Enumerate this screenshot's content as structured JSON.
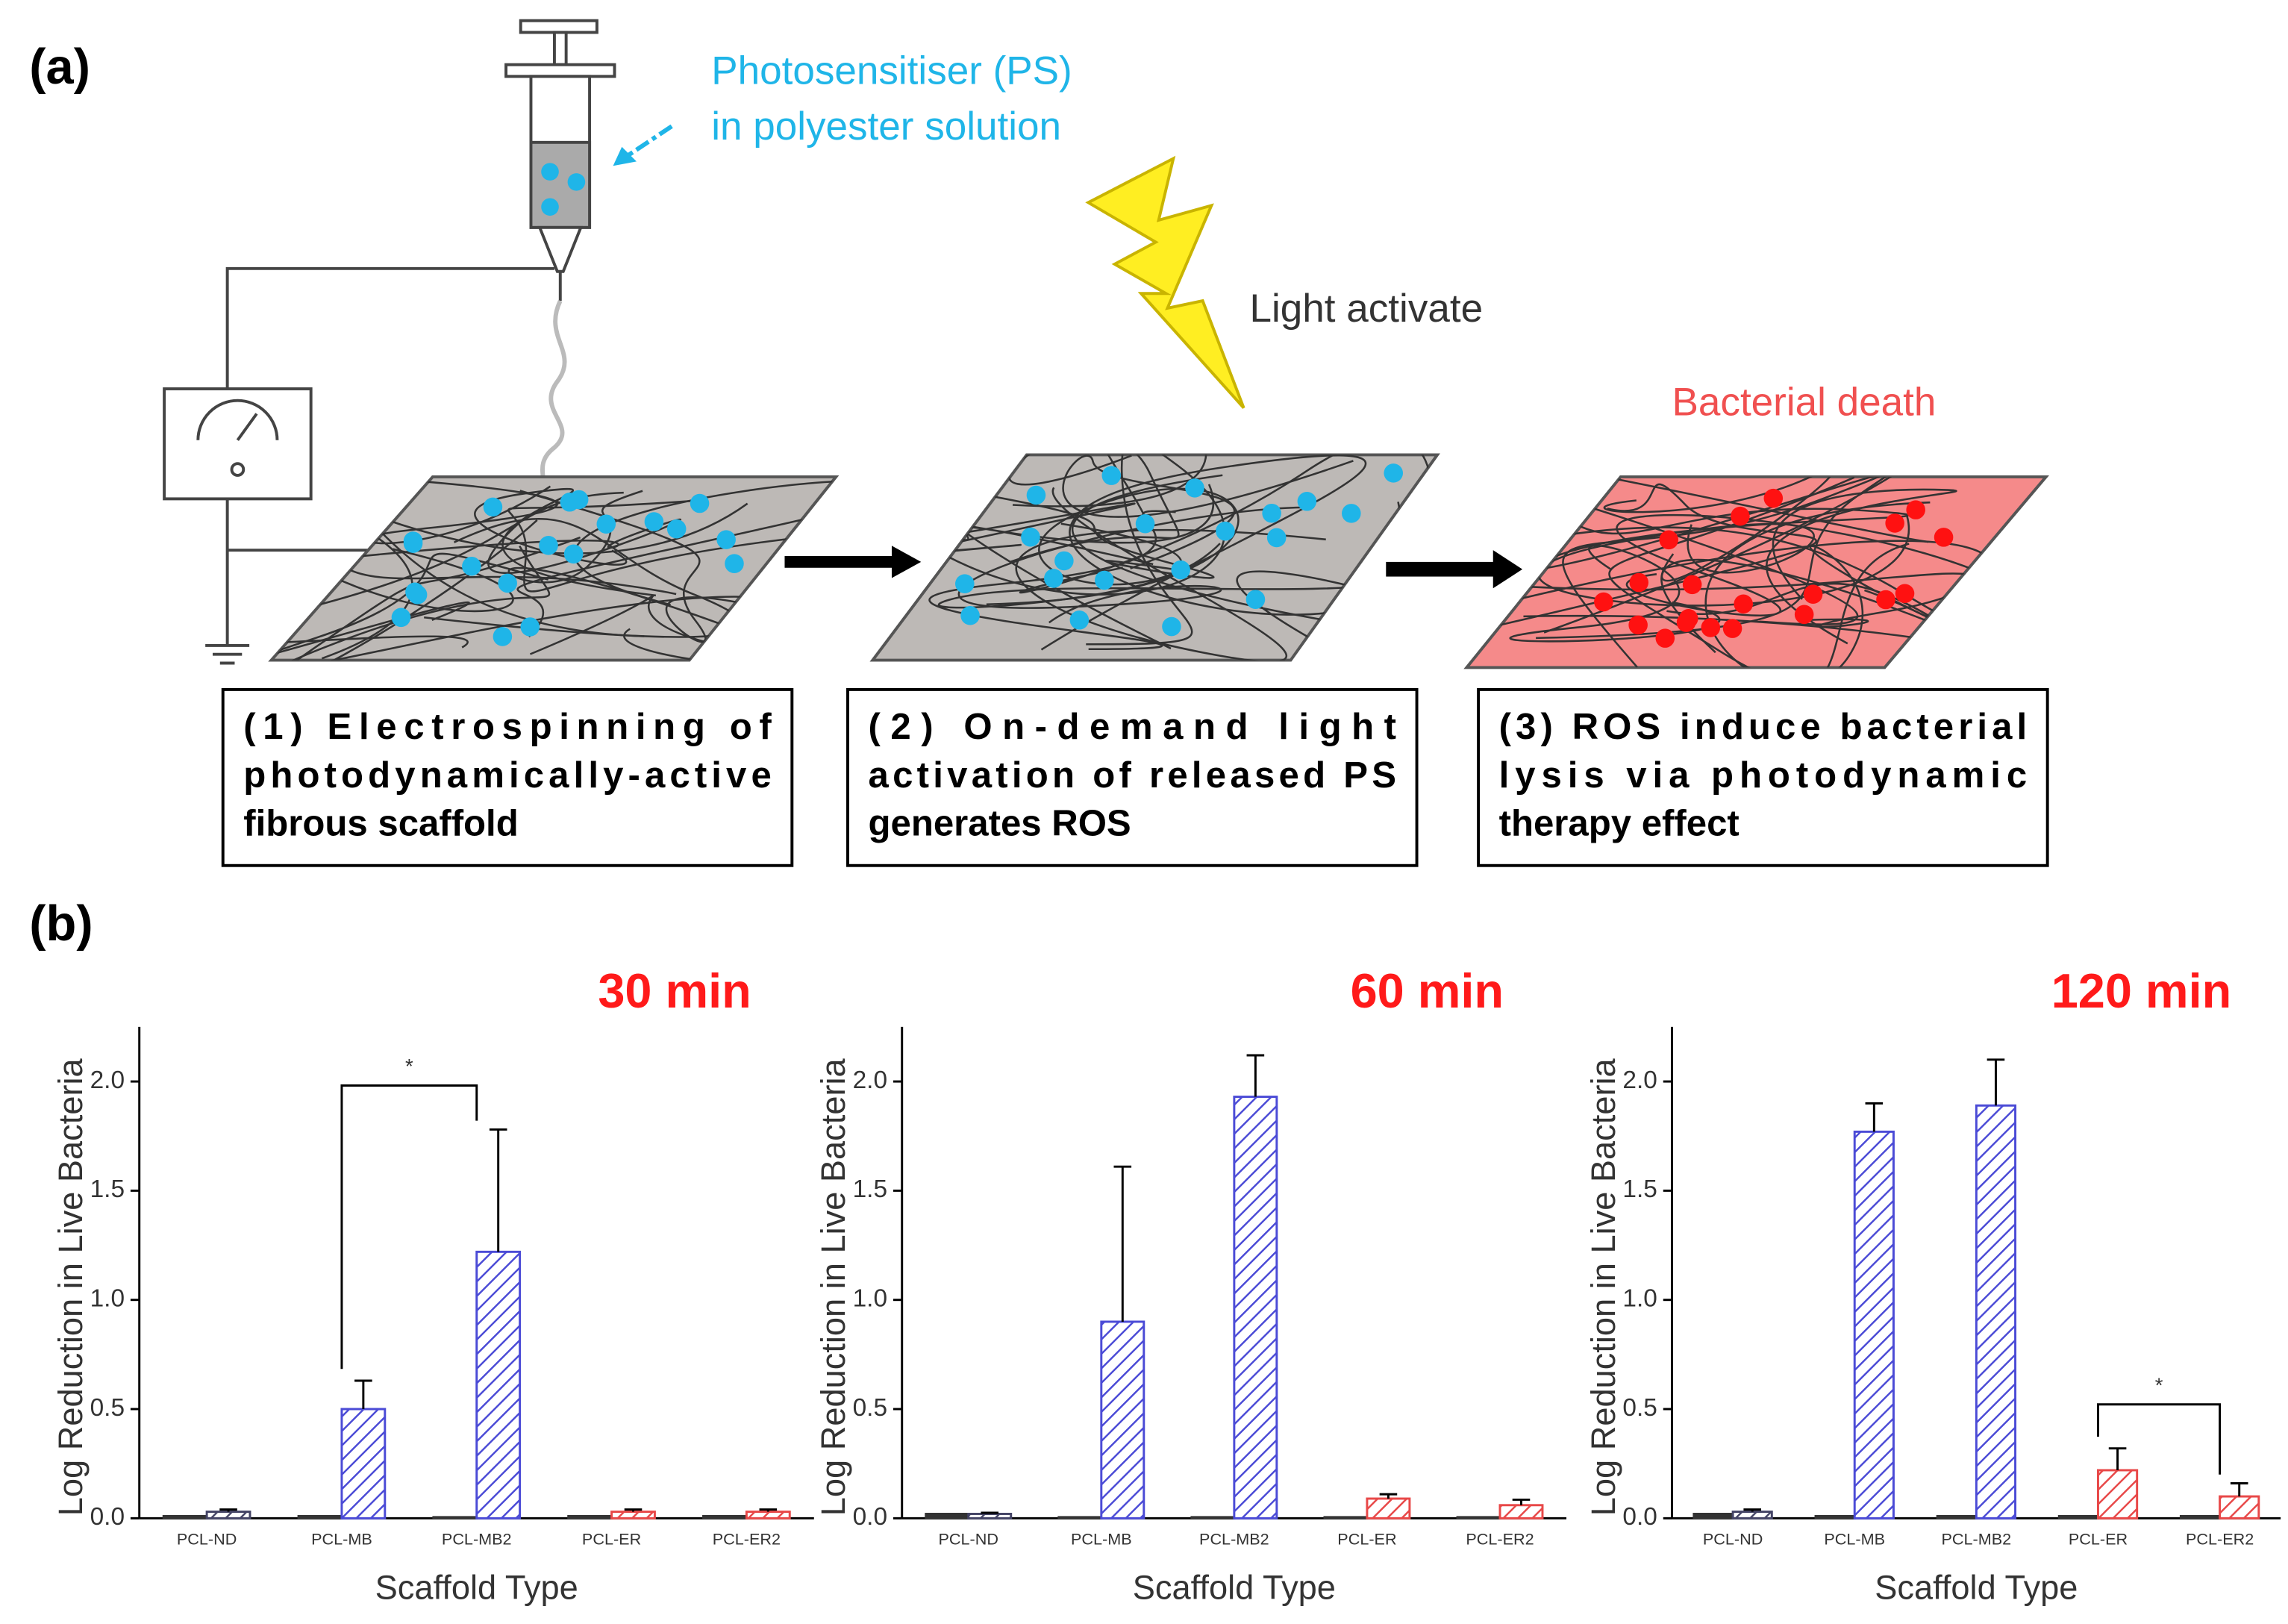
{
  "panel_a": {
    "label": "(a)",
    "syringe_label": [
      "Photosensitiser (PS)",
      "in polyester solution"
    ],
    "light_label": "Light activate",
    "death_label": "Bacterial death",
    "steps": [
      [
        "(1) Electrospinning of",
        "photodynamically-active",
        "fibrous scaffold"
      ],
      [
        "(2) On-demand light",
        "activation of released PS",
        "generates ROS"
      ],
      [
        "(3) ROS induce bacterial",
        "lysis via photodynamic",
        "therapy effect"
      ]
    ]
  },
  "panel_b": {
    "label": "(b)"
  },
  "chart_data": [
    {
      "type": "bar",
      "title": "30 min",
      "title_color": "#ff1a1a",
      "y_label": "Log Reduction in Live Bacteria",
      "x_label": "Scaffold Type",
      "categories": [
        "PCL-ND",
        "PCL-MB",
        "PCL-MB2",
        "PCL-ER",
        "PCL-ER2"
      ],
      "ylim": [
        0,
        2.25
      ],
      "yticks": [
        {
          "value": 0,
          "label": "0.0"
        },
        0.5,
        {
          "value": 1,
          "label": "1.0"
        },
        1.5,
        {
          "value": 2,
          "label": "2.0"
        }
      ],
      "series": [
        {
          "color": "#333333",
          "values": [
            0.01,
            0.01,
            0.005,
            0.01,
            0.01
          ]
        },
        {
          "colors": [
            "#444466",
            "#4b4bd6",
            "#4b4bd6",
            "#e84848",
            "#e84848"
          ],
          "hatch": true,
          "values": [
            0.03,
            0.5,
            1.22,
            0.03,
            0.03
          ],
          "errors": [
            0.01,
            0.13,
            0.56,
            0.01,
            0.01
          ]
        }
      ],
      "annotations": [
        {
          "text": "*",
          "from": 1,
          "to": 2
        }
      ]
    },
    {
      "type": "bar",
      "title": "60 min",
      "title_color": "#ff1a1a",
      "y_label": "Log Reduction in Live Bacteria",
      "x_label": "Scaffold Type",
      "categories": [
        "PCL-ND",
        "PCL-MB",
        "PCL-MB2",
        "PCL-ER",
        "PCL-ER2"
      ],
      "ylim": [
        0,
        2.25
      ],
      "yticks": [
        {
          "value": 0,
          "label": "0.0"
        },
        0.5,
        {
          "value": 1,
          "label": "1.0"
        },
        1.5,
        {
          "value": 2,
          "label": "2.0"
        }
      ],
      "series": [
        {
          "color": "#333333",
          "values": [
            0.02,
            0.005,
            0.005,
            0.005,
            0.005
          ]
        },
        {
          "colors": [
            "#444466",
            "#4b4bd6",
            "#4b4bd6",
            "#e84848",
            "#e84848"
          ],
          "hatch": true,
          "values": [
            0.02,
            0.9,
            1.93,
            0.09,
            0.06
          ],
          "errors": [
            0.005,
            0.71,
            0.19,
            0.02,
            0.025
          ]
        }
      ]
    },
    {
      "type": "bar",
      "title": "120 min",
      "title_color": "#ff1a1a",
      "y_label": "Log Reduction in Live Bacteria",
      "x_label": "Scaffold Type",
      "categories": [
        "PCL-ND",
        "PCL-MB",
        "PCL-MB2",
        "PCL-ER",
        "PCL-ER2"
      ],
      "ylim": [
        0,
        2.25
      ],
      "yticks": [
        {
          "value": 0,
          "label": "0.0"
        },
        0.5,
        {
          "value": 1,
          "label": "1.0"
        },
        1.5,
        {
          "value": 2,
          "label": "2.0"
        }
      ],
      "series": [
        {
          "color": "#333333",
          "values": [
            0.02,
            0.01,
            0.01,
            0.01,
            0.01
          ]
        },
        {
          "colors": [
            "#444466",
            "#4b4bd6",
            "#4b4bd6",
            "#e84848",
            "#e84848"
          ],
          "hatch": true,
          "values": [
            0.03,
            1.77,
            1.89,
            0.22,
            0.1
          ],
          "errors": [
            0.01,
            0.13,
            0.21,
            0.1,
            0.06
          ]
        }
      ],
      "annotations": [
        {
          "text": "*",
          "from": 3,
          "to": 4
        }
      ]
    }
  ]
}
